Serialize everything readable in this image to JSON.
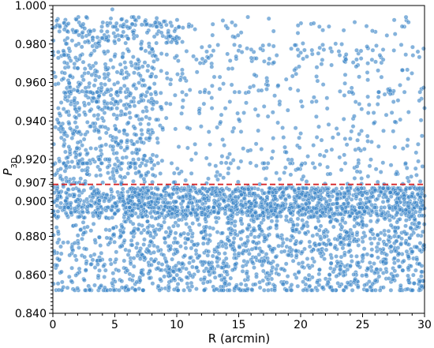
{
  "chart_data": {
    "type": "scatter",
    "xlabel": "R (arcmin)",
    "ylabel": "P",
    "ylabel_sub": "3D",
    "xlim": [
      0,
      30
    ],
    "ylim": [
      0.84,
      1.0
    ],
    "xticks": [
      0,
      5,
      10,
      15,
      20,
      25,
      30
    ],
    "xtick_labels": [
      "0",
      "5",
      "10",
      "15",
      "20",
      "25",
      "30"
    ],
    "yticks": [
      0.84,
      0.86,
      0.88,
      0.9,
      0.907,
      0.92,
      0.94,
      0.96,
      0.98,
      1.0
    ],
    "ytick_labels": [
      "0.840",
      "0.860",
      "0.880",
      "0.900",
      "0.907",
      "0.920",
      "0.940",
      "0.960",
      "0.980",
      "1.000"
    ],
    "threshold": 0.907,
    "threshold_color": "#d62728",
    "point_color": "#3a85c6",
    "grid": false,
    "legend": "none",
    "point_distribution": [
      {
        "r": [
          0,
          10.5
        ],
        "p": [
          0.98,
          0.994
        ],
        "n": 180,
        "weight": "dense"
      },
      {
        "r": [
          10.5,
          30
        ],
        "p": [
          0.97,
          0.994
        ],
        "n": 70,
        "weight": "sparse"
      },
      {
        "r": [
          0,
          8.5
        ],
        "p": [
          0.907,
          0.98
        ],
        "n": 620,
        "weight": "dense"
      },
      {
        "r": [
          8.5,
          30
        ],
        "p": [
          0.907,
          0.98
        ],
        "n": 420,
        "weight": "medium"
      },
      {
        "r": [
          0,
          6
        ],
        "p": [
          0.852,
          0.906
        ],
        "n": 260,
        "weight": "medium"
      },
      {
        "r": [
          6,
          30
        ],
        "p": [
          0.852,
          0.906
        ],
        "n": 1750,
        "weight": "dense"
      },
      {
        "r": [
          0,
          30
        ],
        "p": [
          0.89,
          0.905
        ],
        "n": 800,
        "weight": "dense"
      }
    ],
    "horizontal_bands": [
      0.994,
      0.989,
      0.955,
      0.918,
      0.905,
      0.895,
      0.852
    ],
    "outlier": {
      "r": 4.8,
      "p": 0.998
    }
  }
}
